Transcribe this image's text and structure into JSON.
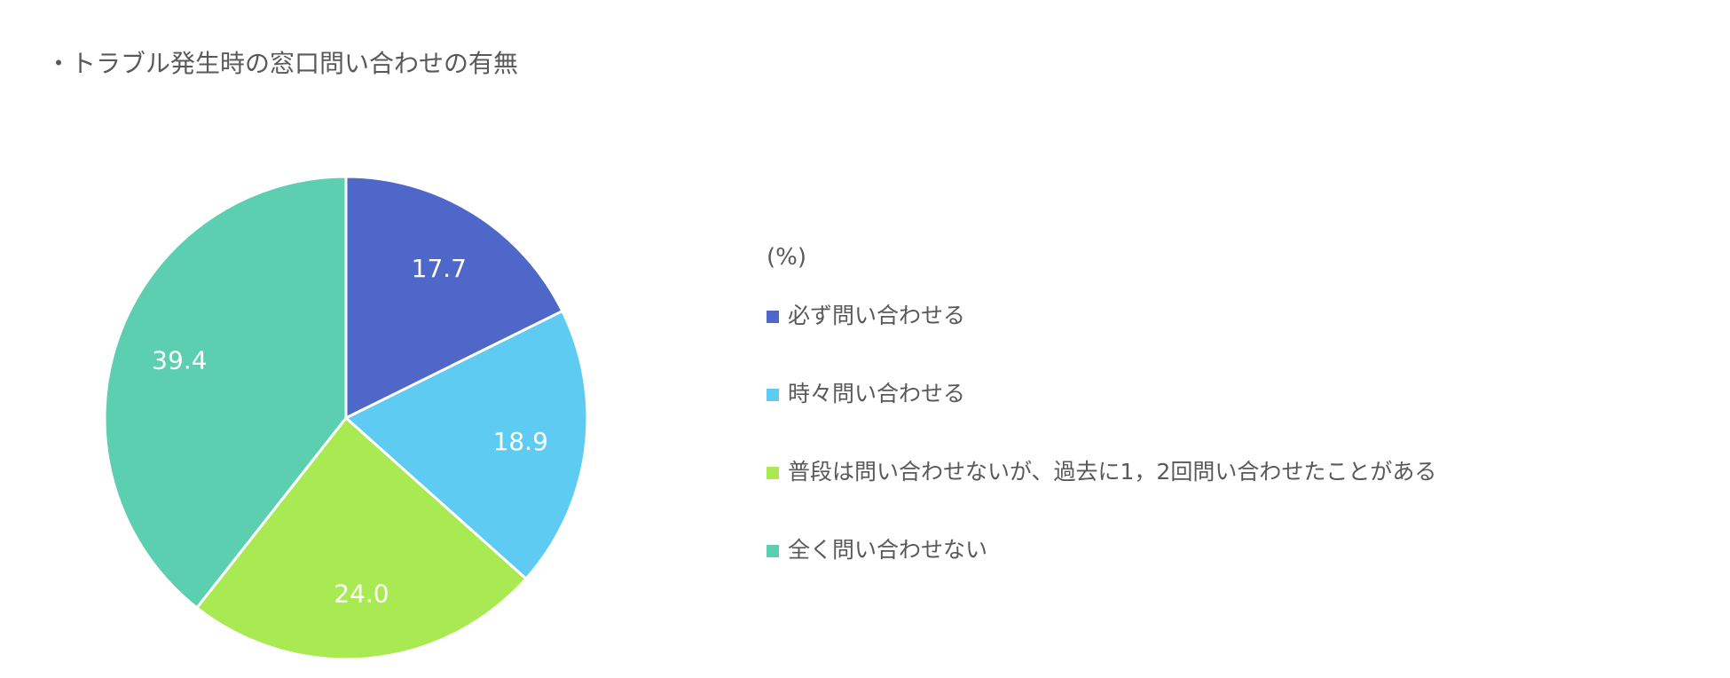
{
  "chart_data": {
    "type": "pie",
    "title": "・トラブル発生時の窓口問い合わせの有無",
    "unit_label": "(%)",
    "legend_position": "right",
    "start_angle_deg": 0,
    "direction": "clockwise",
    "slices": [
      {
        "label": "必ず問い合わせる",
        "value": 17.7,
        "display": "17.7",
        "color": "#4f67c8"
      },
      {
        "label": "時々問い合わせる",
        "value": 18.9,
        "display": "18.9",
        "color": "#5ecbf2"
      },
      {
        "label": "普段は問い合わせないが、過去に1，2回問い合わせたことがある",
        "value": 24.0,
        "display": "24.0",
        "color": "#a9e952"
      },
      {
        "label": "全く問い合わせない",
        "value": 39.4,
        "display": "39.4",
        "color": "#5ccfb1"
      }
    ]
  }
}
